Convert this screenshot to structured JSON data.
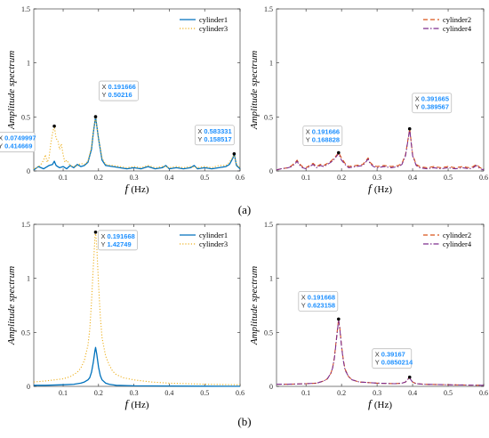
{
  "figure": {
    "captions": [
      "(a)",
      "(b)"
    ]
  },
  "style": {
    "colors": {
      "cylinder1": "#0072BD",
      "cylinder2": "#D95319",
      "cylinder3": "#EDB120",
      "cylinder4": "#7E2F8E",
      "datatip_value": "#1E90FF"
    },
    "line_styles": {
      "cylinder1": "solid",
      "cylinder2": "dashed",
      "cylinder3": "dotted",
      "cylinder4": "dash-dot"
    }
  },
  "chart_data": [
    {
      "panel": "a-left",
      "type": "line",
      "xlabel": "f (Hz)",
      "ylabel": "Amplitude spectrum",
      "xlim": [
        0.017,
        0.6
      ],
      "ylim": [
        0,
        1.5
      ],
      "xticks": [
        "0.1",
        "0.2",
        "0.3",
        "0.4",
        "0.5",
        "0.6"
      ],
      "yticks": [
        "0",
        "0.5",
        "1",
        "1.5"
      ],
      "legend": "top-right",
      "series": [
        {
          "name": "cylinder1",
          "x": [
            0.017,
            0.03,
            0.045,
            0.06,
            0.07,
            0.075,
            0.08,
            0.09,
            0.1,
            0.11,
            0.12,
            0.13,
            0.14,
            0.15,
            0.16,
            0.17,
            0.18,
            0.185,
            0.1917,
            0.2,
            0.21,
            0.22,
            0.24,
            0.26,
            0.28,
            0.3,
            0.32,
            0.34,
            0.36,
            0.38,
            0.39,
            0.4,
            0.42,
            0.44,
            0.46,
            0.47,
            0.48,
            0.5,
            0.52,
            0.54,
            0.56,
            0.57,
            0.58,
            0.5833,
            0.59,
            0.6
          ],
          "y": [
            0.01,
            0.04,
            0.02,
            0.05,
            0.06,
            0.09,
            0.05,
            0.03,
            0.04,
            0.02,
            0.05,
            0.03,
            0.06,
            0.04,
            0.05,
            0.08,
            0.2,
            0.35,
            0.5,
            0.3,
            0.1,
            0.05,
            0.04,
            0.03,
            0.02,
            0.03,
            0.02,
            0.04,
            0.02,
            0.03,
            0.05,
            0.02,
            0.03,
            0.02,
            0.03,
            0.05,
            0.02,
            0.03,
            0.02,
            0.03,
            0.04,
            0.06,
            0.12,
            0.158,
            0.05,
            0.02
          ]
        },
        {
          "name": "cylinder3",
          "x": [
            0.017,
            0.025,
            0.035,
            0.045,
            0.05,
            0.055,
            0.06,
            0.065,
            0.07,
            0.075,
            0.08,
            0.085,
            0.09,
            0.095,
            0.1,
            0.105,
            0.11,
            0.12,
            0.13,
            0.14,
            0.15,
            0.16,
            0.17,
            0.18,
            0.185,
            0.1917,
            0.2,
            0.21,
            0.22,
            0.24,
            0.26,
            0.28,
            0.3,
            0.32,
            0.34,
            0.36,
            0.38,
            0.39,
            0.4,
            0.42,
            0.44,
            0.46,
            0.48,
            0.5,
            0.52,
            0.54,
            0.56,
            0.57,
            0.58,
            0.5833,
            0.59,
            0.6
          ],
          "y": [
            0.02,
            0.03,
            0.05,
            0.1,
            0.15,
            0.08,
            0.12,
            0.25,
            0.35,
            0.4147,
            0.3,
            0.28,
            0.2,
            0.25,
            0.15,
            0.08,
            0.1,
            0.05,
            0.04,
            0.05,
            0.07,
            0.06,
            0.09,
            0.22,
            0.36,
            0.50216,
            0.3,
            0.12,
            0.06,
            0.05,
            0.04,
            0.03,
            0.04,
            0.03,
            0.05,
            0.03,
            0.04,
            0.04,
            0.03,
            0.04,
            0.03,
            0.04,
            0.03,
            0.04,
            0.03,
            0.05,
            0.05,
            0.08,
            0.13,
            0.1585,
            0.06,
            0.03
          ]
        }
      ],
      "datatips": [
        {
          "x": "0.0749997",
          "y": "0.414669",
          "xv": 0.0749997,
          "yv": 0.414669
        },
        {
          "x": "0.191666",
          "y": "0.50216",
          "xv": 0.191666,
          "yv": 0.50216
        },
        {
          "x": "0.583331",
          "y": "0.158517",
          "xv": 0.583331,
          "yv": 0.158517
        }
      ]
    },
    {
      "panel": "a-right",
      "type": "line",
      "xlabel": "f (Hz)",
      "ylabel": "Amplitude spectrum",
      "xlim": [
        0.017,
        0.6
      ],
      "ylim": [
        0,
        1.5
      ],
      "xticks": [
        "0.1",
        "0.2",
        "0.3",
        "0.4",
        "0.5",
        "0.6"
      ],
      "yticks": [
        "0",
        "0.5",
        "1",
        "1.5"
      ],
      "legend": "top-right",
      "series": [
        {
          "name": "cylinder2",
          "x": [
            0.017,
            0.03,
            0.05,
            0.06,
            0.07,
            0.075,
            0.08,
            0.09,
            0.1,
            0.11,
            0.12,
            0.13,
            0.14,
            0.15,
            0.16,
            0.17,
            0.18,
            0.1917,
            0.2,
            0.21,
            0.22,
            0.24,
            0.26,
            0.27,
            0.275,
            0.28,
            0.29,
            0.3,
            0.32,
            0.34,
            0.36,
            0.37,
            0.38,
            0.3917,
            0.4,
            0.41,
            0.42,
            0.44,
            0.46,
            0.48,
            0.5,
            0.52,
            0.54,
            0.56,
            0.57,
            0.58,
            0.59,
            0.6
          ],
          "y": [
            0.01,
            0.02,
            0.03,
            0.05,
            0.08,
            0.1,
            0.07,
            0.04,
            0.03,
            0.05,
            0.07,
            0.04,
            0.06,
            0.05,
            0.07,
            0.09,
            0.12,
            0.1688,
            0.12,
            0.07,
            0.04,
            0.05,
            0.06,
            0.1,
            0.12,
            0.08,
            0.05,
            0.04,
            0.05,
            0.04,
            0.05,
            0.07,
            0.15,
            0.3896,
            0.15,
            0.06,
            0.04,
            0.03,
            0.04,
            0.03,
            0.04,
            0.03,
            0.04,
            0.03,
            0.04,
            0.06,
            0.03,
            0.02
          ]
        },
        {
          "name": "cylinder4",
          "x": [
            0.017,
            0.03,
            0.05,
            0.06,
            0.07,
            0.075,
            0.08,
            0.09,
            0.1,
            0.11,
            0.12,
            0.13,
            0.14,
            0.15,
            0.16,
            0.17,
            0.18,
            0.1917,
            0.2,
            0.21,
            0.22,
            0.24,
            0.26,
            0.27,
            0.275,
            0.28,
            0.29,
            0.3,
            0.32,
            0.34,
            0.36,
            0.37,
            0.38,
            0.3917,
            0.4,
            0.41,
            0.42,
            0.44,
            0.46,
            0.48,
            0.5,
            0.52,
            0.54,
            0.56,
            0.57,
            0.58,
            0.59,
            0.6
          ],
          "y": [
            0.01,
            0.02,
            0.03,
            0.04,
            0.07,
            0.09,
            0.06,
            0.03,
            0.02,
            0.04,
            0.06,
            0.03,
            0.05,
            0.04,
            0.06,
            0.08,
            0.11,
            0.16,
            0.1,
            0.06,
            0.03,
            0.04,
            0.05,
            0.09,
            0.11,
            0.07,
            0.04,
            0.03,
            0.04,
            0.03,
            0.04,
            0.06,
            0.14,
            0.385,
            0.14,
            0.05,
            0.03,
            0.02,
            0.03,
            0.02,
            0.03,
            0.02,
            0.03,
            0.02,
            0.03,
            0.05,
            0.02,
            0.01
          ]
        }
      ],
      "datatips": [
        {
          "x": "0.191666",
          "y": "0.168828",
          "xv": 0.191666,
          "yv": 0.168828
        },
        {
          "x": "0.391665",
          "y": "0.389567",
          "xv": 0.391665,
          "yv": 0.389567
        }
      ]
    },
    {
      "panel": "b-left",
      "type": "line",
      "xlabel": "f (Hz)",
      "ylabel": "Amplitude spectrum",
      "xlim": [
        0.017,
        0.6
      ],
      "ylim": [
        0,
        1.5
      ],
      "xticks": [
        "0.1",
        "0.2",
        "0.3",
        "0.4",
        "0.5",
        "0.6"
      ],
      "yticks": [
        "0",
        "0.5",
        "1",
        "1.5"
      ],
      "legend": "top-right",
      "series": [
        {
          "name": "cylinder1",
          "x": [
            0.017,
            0.05,
            0.1,
            0.13,
            0.15,
            0.16,
            0.17,
            0.175,
            0.18,
            0.185,
            0.19,
            0.1917,
            0.195,
            0.2,
            0.205,
            0.21,
            0.22,
            0.23,
            0.25,
            0.3,
            0.4,
            0.5,
            0.6
          ],
          "y": [
            0.01,
            0.01,
            0.015,
            0.02,
            0.03,
            0.04,
            0.06,
            0.08,
            0.13,
            0.22,
            0.33,
            0.36,
            0.3,
            0.18,
            0.1,
            0.06,
            0.03,
            0.02,
            0.01,
            0.005,
            0.003,
            0.002,
            0.001
          ]
        },
        {
          "name": "cylinder3",
          "x": [
            0.017,
            0.05,
            0.1,
            0.12,
            0.14,
            0.15,
            0.16,
            0.17,
            0.175,
            0.18,
            0.185,
            0.19,
            0.1917,
            0.195,
            0.2,
            0.205,
            0.21,
            0.22,
            0.23,
            0.24,
            0.25,
            0.27,
            0.3,
            0.35,
            0.4,
            0.5,
            0.6
          ],
          "y": [
            0.04,
            0.05,
            0.07,
            0.09,
            0.13,
            0.17,
            0.24,
            0.38,
            0.52,
            0.78,
            1.1,
            1.38,
            1.42749,
            1.3,
            0.95,
            0.65,
            0.45,
            0.28,
            0.2,
            0.14,
            0.11,
            0.08,
            0.06,
            0.04,
            0.03,
            0.02,
            0.015
          ]
        }
      ],
      "datatips": [
        {
          "x": "0.191668",
          "y": "1.42749",
          "xv": 0.191668,
          "yv": 1.42749
        }
      ]
    },
    {
      "panel": "b-right",
      "type": "line",
      "xlabel": "f (Hz)",
      "ylabel": "Amplitude spectrum",
      "xlim": [
        0.017,
        0.6
      ],
      "ylim": [
        0,
        1.5
      ],
      "xticks": [
        "0.1",
        "0.2",
        "0.3",
        "0.4",
        "0.5",
        "0.6"
      ],
      "yticks": [
        "0",
        "0.5",
        "1",
        "1.5"
      ],
      "legend": "top-right",
      "series": [
        {
          "name": "cylinder2",
          "x": [
            0.017,
            0.05,
            0.1,
            0.13,
            0.15,
            0.16,
            0.17,
            0.175,
            0.18,
            0.185,
            0.19,
            0.1917,
            0.195,
            0.2,
            0.205,
            0.21,
            0.22,
            0.23,
            0.25,
            0.3,
            0.35,
            0.37,
            0.38,
            0.385,
            0.3917,
            0.395,
            0.4,
            0.41,
            0.43,
            0.5,
            0.6
          ],
          "y": [
            0.02,
            0.02,
            0.025,
            0.03,
            0.05,
            0.07,
            0.12,
            0.17,
            0.27,
            0.42,
            0.57,
            0.623,
            0.55,
            0.38,
            0.25,
            0.16,
            0.09,
            0.06,
            0.04,
            0.03,
            0.025,
            0.03,
            0.04,
            0.06,
            0.085,
            0.06,
            0.04,
            0.025,
            0.02,
            0.015,
            0.01
          ]
        },
        {
          "name": "cylinder4",
          "x": [
            0.017,
            0.05,
            0.1,
            0.13,
            0.15,
            0.16,
            0.17,
            0.175,
            0.18,
            0.185,
            0.19,
            0.1917,
            0.195,
            0.2,
            0.205,
            0.21,
            0.22,
            0.23,
            0.25,
            0.3,
            0.35,
            0.37,
            0.38,
            0.385,
            0.3917,
            0.395,
            0.4,
            0.41,
            0.43,
            0.5,
            0.6
          ],
          "y": [
            0.02,
            0.02,
            0.025,
            0.03,
            0.05,
            0.07,
            0.12,
            0.17,
            0.26,
            0.41,
            0.56,
            0.615,
            0.54,
            0.37,
            0.24,
            0.15,
            0.09,
            0.06,
            0.04,
            0.03,
            0.025,
            0.03,
            0.04,
            0.06,
            0.082,
            0.06,
            0.04,
            0.025,
            0.02,
            0.015,
            0.01
          ]
        }
      ],
      "datatips": [
        {
          "x": "0.191668",
          "y": "0.623158",
          "xv": 0.191668,
          "yv": 0.623158
        },
        {
          "x": "0.39167",
          "y": "0.0850214",
          "xv": 0.39167,
          "yv": 0.0850214
        }
      ]
    }
  ]
}
